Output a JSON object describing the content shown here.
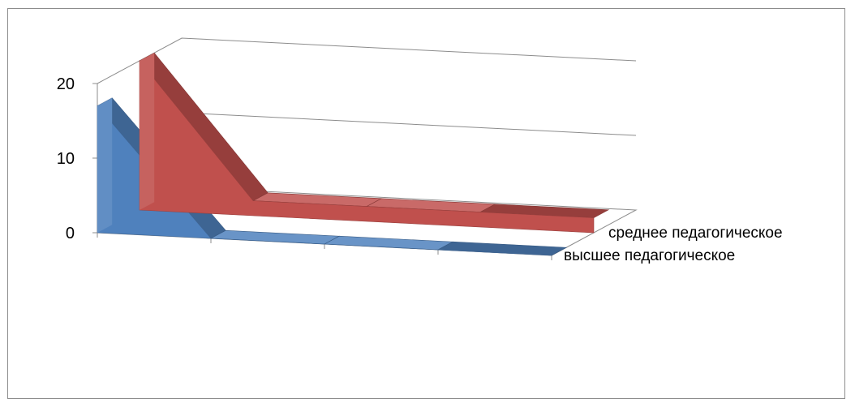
{
  "chart_data": {
    "type": "area",
    "subtype": "3d-area",
    "title": "",
    "xlabel": "",
    "ylabel": "",
    "ylim": [
      0,
      20
    ],
    "y_ticks": [
      0,
      10,
      20
    ],
    "y_tick_labels": [
      "0",
      "10",
      "20"
    ],
    "grid": true,
    "categories": [
      "",
      "",
      "",
      ""
    ],
    "series": [
      {
        "name": "среднее педагогическое",
        "values": [
          20,
          2,
          2,
          2
        ],
        "color": "#c0504d"
      },
      {
        "name": "высшее педагогическое",
        "values": [
          17,
          0,
          0,
          0
        ],
        "color": "#4f81bd"
      }
    ]
  }
}
